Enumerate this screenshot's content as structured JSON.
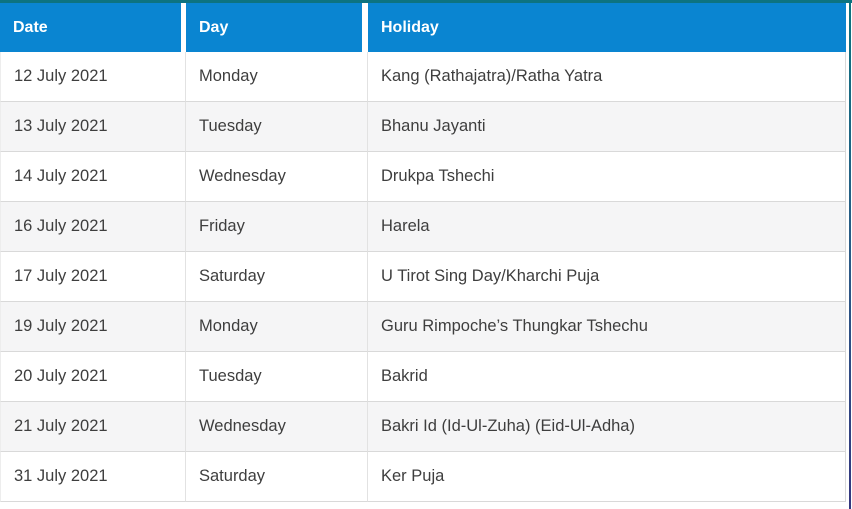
{
  "colors": {
    "header_bg": "#0a85d1",
    "header_text": "#ffffff",
    "body_text": "#3e3e3e",
    "row_alt_bg": "#f5f5f6",
    "row_separator": "#d9d9d9",
    "top_accent": "#0d7380",
    "right_accent_top": "#0d7380",
    "right_accent_bottom": "#34377f"
  },
  "table": {
    "columns": [
      {
        "label": "Date"
      },
      {
        "label": "Day"
      },
      {
        "label": "Holiday"
      }
    ],
    "rows": [
      {
        "date": "12 July 2021",
        "day": "Monday",
        "holiday": "Kang (Rathajatra)/Ratha Yatra"
      },
      {
        "date": "13 July 2021",
        "day": "Tuesday",
        "holiday": "Bhanu Jayanti"
      },
      {
        "date": "14 July 2021",
        "day": "Wednesday",
        "holiday": "Drukpa Tshechi"
      },
      {
        "date": "16 July 2021",
        "day": "Friday",
        "holiday": "Harela"
      },
      {
        "date": "17 July 2021",
        "day": "Saturday",
        "holiday": "U Tirot Sing Day/Kharchi Puja"
      },
      {
        "date": "19 July 2021",
        "day": "Monday",
        "holiday": "Guru Rimpoche’s Thungkar Tshechu"
      },
      {
        "date": "20 July 2021",
        "day": "Tuesday",
        "holiday": "Bakrid"
      },
      {
        "date": "21 July 2021",
        "day": "Wednesday",
        "holiday": "Bakri Id (Id-Ul-Zuha) (Eid-Ul-Adha)"
      },
      {
        "date": "31 July 2021",
        "day": "Saturday",
        "holiday": "Ker Puja"
      }
    ]
  }
}
